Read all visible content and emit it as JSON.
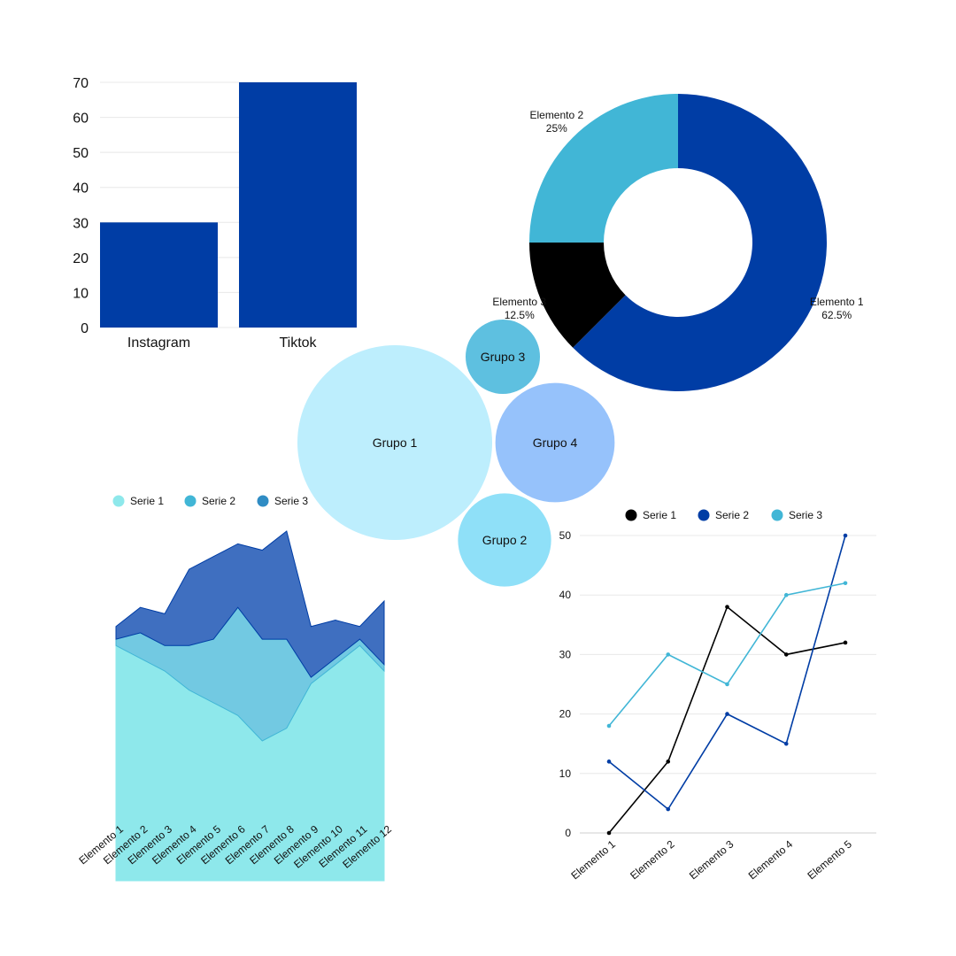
{
  "colors": {
    "navy": "#003da5",
    "teal": "#41b6d6",
    "black": "#000000",
    "bubble_1": "#bdeefd",
    "bubble_2": "#8fe0f8",
    "bubble_3": "#5ec0e0",
    "bubble_4": "#96c2fb",
    "area_1": "#8ee8eb",
    "area_2": "#72c9e2",
    "area_3": "#3f6fc0",
    "grid": "#e8e8e8"
  },
  "chart_data": [
    {
      "id": "bar",
      "type": "bar",
      "categories": [
        "Instagram",
        "Tiktok"
      ],
      "values": [
        30,
        70
      ],
      "ylim": [
        0,
        70
      ],
      "yticks": [
        0,
        10,
        20,
        30,
        40,
        50,
        60,
        70
      ],
      "grid": true
    },
    {
      "id": "donut",
      "type": "pie",
      "slices": [
        {
          "name": "Elemento 1",
          "value": 62.5,
          "label": "62.5%"
        },
        {
          "name": "Elemento 3",
          "value": 12.5,
          "label": "12.5%"
        },
        {
          "name": "Elemento 2",
          "value": 25,
          "label": "25%"
        }
      ]
    },
    {
      "id": "bubbles",
      "type": "scatter",
      "groups": [
        {
          "name": "Grupo 1",
          "value": 48
        },
        {
          "name": "Grupo 2",
          "value": 11
        },
        {
          "name": "Grupo 3",
          "value": 7
        },
        {
          "name": "Grupo 4",
          "value": 18
        }
      ]
    },
    {
      "id": "area",
      "type": "area",
      "stacked": true,
      "legend_position": "top-left",
      "categories": [
        "Elemento 1",
        "Elemento 2",
        "Elemento 3",
        "Elemento 4",
        "Elemento 5",
        "Elemento 6",
        "Elemento 7",
        "Elemento 8",
        "Elemento 9",
        "Elemento 10",
        "Elemento 11",
        "Elemento 12"
      ],
      "series": [
        {
          "name": "Serie 1",
          "values": [
            37,
            35,
            33,
            30,
            28,
            26,
            22,
            24,
            31,
            34,
            37,
            33
          ]
        },
        {
          "name": "Serie 2",
          "values": [
            1,
            4,
            4,
            7,
            10,
            17,
            16,
            14,
            1,
            1,
            1,
            1
          ]
        },
        {
          "name": "Serie 3",
          "values": [
            2,
            4,
            5,
            12,
            13,
            10,
            14,
            17,
            8,
            6,
            2,
            10
          ]
        }
      ],
      "ylim": [
        0,
        55
      ]
    },
    {
      "id": "line",
      "type": "line",
      "legend_position": "top",
      "categories": [
        "Elemento 1",
        "Elemento 2",
        "Elemento 3",
        "Elemento 4",
        "Elemento 5"
      ],
      "series": [
        {
          "name": "Serie 1",
          "values": [
            0,
            12,
            38,
            30,
            32
          ]
        },
        {
          "name": "Serie 2",
          "values": [
            12,
            4,
            20,
            15,
            50
          ]
        },
        {
          "name": "Serie 3",
          "values": [
            18,
            30,
            25,
            40,
            42
          ]
        }
      ],
      "ylim": [
        0,
        50
      ],
      "yticks": [
        0,
        10,
        20,
        30,
        40,
        50
      ],
      "grid": true
    }
  ]
}
